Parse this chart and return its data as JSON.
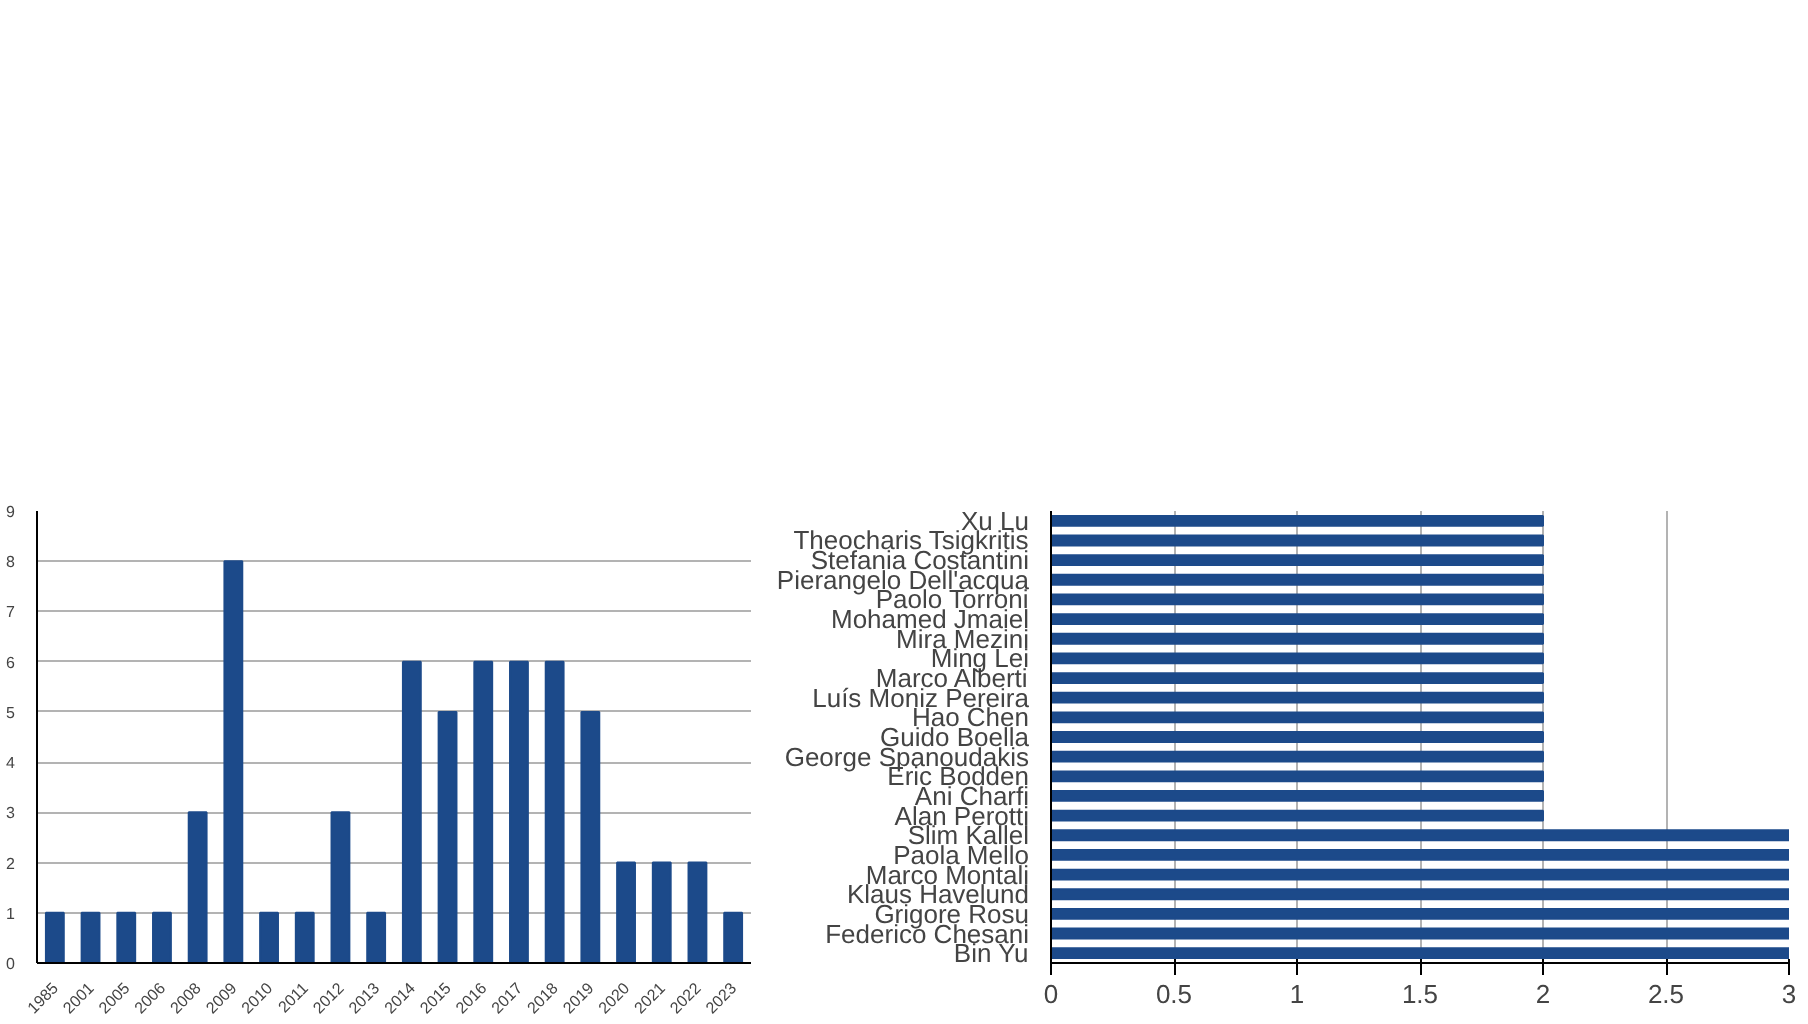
{
  "chart_data": [
    {
      "type": "bar",
      "categories": [
        "1985",
        "2001",
        "2005",
        "2006",
        "2008",
        "2009",
        "2010",
        "2011",
        "2012",
        "2013",
        "2014",
        "2015",
        "2016",
        "2017",
        "2018",
        "2019",
        "2020",
        "2021",
        "2022",
        "2023"
      ],
      "values": [
        1,
        1,
        1,
        1,
        3,
        8,
        1,
        1,
        3,
        1,
        6,
        5,
        6,
        6,
        6,
        5,
        2,
        2,
        2,
        1
      ],
      "color": "#1c4a8a",
      "ylim": [
        0,
        9
      ],
      "yticks": [
        0,
        1,
        2,
        3,
        4,
        5,
        6,
        7,
        8,
        9
      ],
      "grid": "y"
    },
    {
      "type": "bar",
      "orientation": "horizontal",
      "categories": [
        "Xu Lu",
        "Theocharis Tsigkritis",
        "Stefania Costantini",
        "Pierangelo Dell'acqua",
        "Paolo Torroni",
        "Mohamed Jmaiel",
        "Mira Mezini",
        "Ming Lei",
        "Marco Alberti",
        "Luís Moniz Pereira",
        "Hao Chen",
        "Guido Boella",
        "George Spanoudakis",
        "Eric Bodden",
        "Ani Charfi",
        "Alan Perotti",
        "Slim Kallel",
        "Paola Mello",
        "Marco Montali",
        "Klaus Havelund",
        "Grigore Rosu",
        "Federico Chesani",
        "Bin Yu"
      ],
      "values": [
        2,
        2,
        2,
        2,
        2,
        2,
        2,
        2,
        2,
        2,
        2,
        2,
        2,
        2,
        2,
        2,
        3,
        3,
        3,
        3,
        3,
        3,
        3
      ],
      "color": "#1c4a8a",
      "xlim": [
        0,
        3
      ],
      "xticks": [
        0,
        0.5,
        1,
        1.5,
        2,
        2.5,
        3
      ],
      "grid": "x"
    }
  ]
}
